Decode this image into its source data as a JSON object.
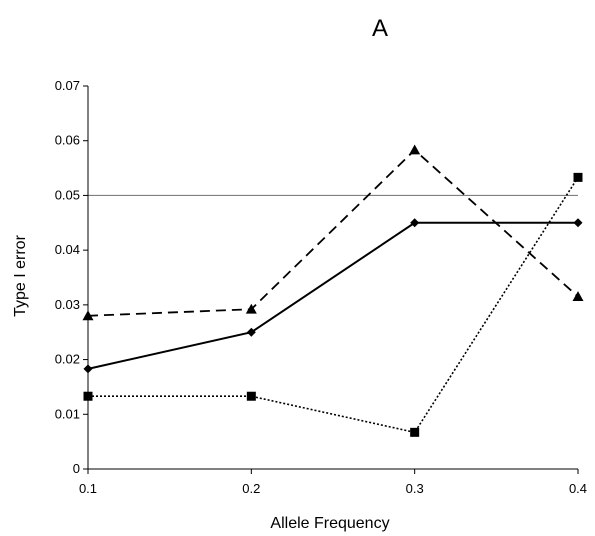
{
  "chart_data": {
    "type": "line",
    "title": "A",
    "xlabel": "Allele Frequency",
    "ylabel": "Type I error",
    "x": [
      0.1,
      0.2,
      0.3,
      0.4
    ],
    "x_tick_labels": [
      "0.1",
      "0.2",
      "0.3",
      "0.4"
    ],
    "xlim": [
      0.1,
      0.4
    ],
    "ylim": [
      0,
      0.07
    ],
    "y_ticks": [
      0,
      0.01,
      0.02,
      0.03,
      0.04,
      0.05,
      0.06,
      0.07
    ],
    "y_tick_labels": [
      "0",
      "0.01",
      "0.02",
      "0.03",
      "0.04",
      "0.05",
      "0.06",
      "0.07"
    ],
    "grid": false,
    "legend": "none",
    "reference_line": {
      "y": 0.05,
      "color": "#808080"
    },
    "series": [
      {
        "marker": "diamond",
        "line_style": "solid",
        "color": "#000000",
        "values": [
          0.0183,
          0.025,
          0.045,
          0.045
        ]
      },
      {
        "marker": "triangle",
        "line_style": "dashed",
        "color": "#000000",
        "values": [
          0.028,
          0.0292,
          0.0583,
          0.0315
        ]
      },
      {
        "marker": "square",
        "line_style": "dotted",
        "color": "#000000",
        "values": [
          0.0133,
          0.0133,
          0.0067,
          0.0533
        ]
      }
    ]
  }
}
